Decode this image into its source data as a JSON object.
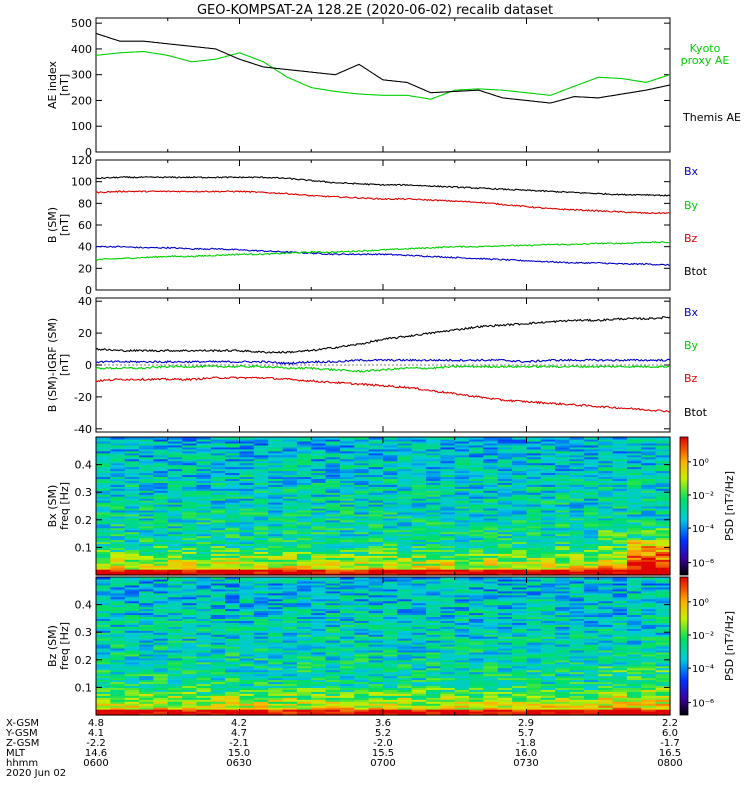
{
  "title": "GEO-KOMPSAT-2A 128.2E (2020-06-02) recalib dataset",
  "chart_data": [
    {
      "type": "line",
      "panel": "ae",
      "ylabel": "AE index",
      "yunit": "[nT]",
      "ylim": [
        0,
        520
      ],
      "yticks": [
        0,
        100,
        200,
        300,
        400,
        500
      ],
      "x": [
        "06:00",
        "06:05",
        "06:10",
        "06:15",
        "06:20",
        "06:25",
        "06:30",
        "06:35",
        "06:40",
        "06:45",
        "06:50",
        "06:55",
        "07:00",
        "07:05",
        "07:10",
        "07:15",
        "07:20",
        "07:25",
        "07:30",
        "07:35",
        "07:40",
        "07:45",
        "07:50",
        "07:55",
        "08:00"
      ],
      "series": [
        {
          "name": "Kyoto proxy AE",
          "color": "#00d000",
          "values": [
            375,
            385,
            390,
            375,
            350,
            360,
            385,
            350,
            290,
            250,
            235,
            225,
            220,
            220,
            205,
            240,
            245,
            240,
            230,
            220,
            255,
            290,
            285,
            270,
            300
          ]
        },
        {
          "name": "Themis AE",
          "color": "#000000",
          "values": [
            460,
            430,
            430,
            420,
            410,
            400,
            360,
            330,
            320,
            310,
            300,
            340,
            280,
            270,
            230,
            235,
            240,
            210,
            200,
            190,
            215,
            210,
            225,
            240,
            260
          ]
        }
      ]
    },
    {
      "type": "line",
      "panel": "b",
      "ylabel": "B (SM)",
      "yunit": "[nT]",
      "ylim": [
        0,
        120
      ],
      "yticks": [
        0,
        20,
        40,
        60,
        80,
        100,
        120
      ],
      "x": [
        "06:00",
        "06:05",
        "06:10",
        "06:15",
        "06:20",
        "06:25",
        "06:30",
        "06:35",
        "06:40",
        "06:45",
        "06:50",
        "06:55",
        "07:00",
        "07:05",
        "07:10",
        "07:15",
        "07:20",
        "07:25",
        "07:30",
        "07:35",
        "07:40",
        "07:45",
        "07:50",
        "07:55",
        "08:00"
      ],
      "series": [
        {
          "name": "Bx",
          "color": "#0000c8",
          "values": [
            40,
            40,
            39,
            39,
            38,
            38,
            37,
            36,
            35,
            34,
            33,
            33,
            33,
            32,
            31,
            30,
            29,
            28,
            27,
            26,
            25,
            25,
            24,
            24,
            23
          ]
        },
        {
          "name": "By",
          "color": "#00d000",
          "values": [
            28,
            29,
            30,
            31,
            31,
            32,
            33,
            33,
            34,
            35,
            35,
            36,
            37,
            38,
            39,
            40,
            40,
            41,
            41,
            42,
            42,
            43,
            43,
            44,
            44
          ]
        },
        {
          "name": "Bz",
          "color": "#e00000",
          "values": [
            90,
            91,
            91,
            91,
            91,
            91,
            91,
            90,
            89,
            87,
            86,
            85,
            84,
            84,
            83,
            82,
            81,
            79,
            77,
            75,
            74,
            73,
            72,
            71,
            71
          ]
        },
        {
          "name": "Btot",
          "color": "#000000",
          "values": [
            103,
            104,
            104,
            104,
            104,
            104,
            104,
            104,
            103,
            101,
            99,
            98,
            97,
            97,
            96,
            95,
            94,
            93,
            92,
            91,
            90,
            89,
            88,
            88,
            87
          ]
        }
      ]
    },
    {
      "type": "line",
      "panel": "db",
      "ylabel": "B (SM)-IGRF (SM)",
      "yunit": "[nT]",
      "ylim": [
        -42,
        42
      ],
      "yticks": [
        -40,
        -20,
        0,
        20,
        40
      ],
      "x": [
        "06:00",
        "06:05",
        "06:10",
        "06:15",
        "06:20",
        "06:25",
        "06:30",
        "06:35",
        "06:40",
        "06:45",
        "06:50",
        "06:55",
        "07:00",
        "07:05",
        "07:10",
        "07:15",
        "07:20",
        "07:25",
        "07:30",
        "07:35",
        "07:40",
        "07:45",
        "07:50",
        "07:55",
        "08:00"
      ],
      "series": [
        {
          "name": "Bx",
          "color": "#0000c8",
          "values": [
            2,
            2,
            2,
            2,
            2,
            2,
            2,
            2,
            1,
            2,
            2,
            3,
            3,
            3,
            3,
            3,
            3,
            3,
            2,
            3,
            3,
            3,
            3,
            3,
            3
          ]
        },
        {
          "name": "By",
          "color": "#00d000",
          "values": [
            -2,
            -2,
            -2,
            -1,
            -1,
            -1,
            -1,
            -1,
            -2,
            -2,
            -3,
            -4,
            -3,
            -2,
            -2,
            -1,
            -1,
            -1,
            -1,
            -1,
            -1,
            -1,
            -1,
            -1,
            -1
          ]
        },
        {
          "name": "Bz",
          "color": "#e00000",
          "values": [
            -10,
            -9,
            -9,
            -9,
            -9,
            -8,
            -8,
            -8,
            -9,
            -10,
            -11,
            -12,
            -13,
            -14,
            -16,
            -18,
            -20,
            -22,
            -23,
            -24,
            -25,
            -26,
            -27,
            -28,
            -29
          ]
        },
        {
          "name": "Btot",
          "color": "#000000",
          "values": [
            10,
            9,
            9,
            9,
            9,
            9,
            9,
            8,
            8,
            9,
            11,
            13,
            16,
            18,
            20,
            22,
            24,
            25,
            26,
            27,
            28,
            28,
            29,
            29,
            30
          ]
        }
      ]
    },
    {
      "type": "heatmap",
      "panel": "bx_psd",
      "ylabel": "Bx (SM)",
      "yunit": "freq [Hz]",
      "ylim": [
        0,
        0.5
      ],
      "yticks": [
        0.1,
        0.2,
        0.3,
        0.4
      ],
      "colorbar_label": "PSD [nT²/Hz]",
      "colorbar_ticks": [
        "10⁰",
        "10⁻²",
        "10⁻⁴",
        "10⁻⁶"
      ]
    },
    {
      "type": "heatmap",
      "panel": "bz_psd",
      "ylabel": "Bz (SM)",
      "yunit": "freq [Hz]",
      "ylim": [
        0,
        0.5
      ],
      "yticks": [
        0.1,
        0.2,
        0.3,
        0.4
      ],
      "colorbar_label": "PSD [nT²/Hz]",
      "colorbar_ticks": [
        "10⁰",
        "10⁻²",
        "10⁻⁴",
        "10⁻⁶"
      ]
    }
  ],
  "orbit_table": {
    "rows": [
      {
        "label": "X-GSM",
        "values": [
          "4.8",
          "4.2",
          "3.6",
          "2.9",
          "2.2"
        ]
      },
      {
        "label": "Y-GSM",
        "values": [
          "4.1",
          "4.7",
          "5.2",
          "5.7",
          "6.0"
        ]
      },
      {
        "label": "Z-GSM",
        "values": [
          "-2.2",
          "-2.1",
          "-2.0",
          "-1.8",
          "-1.7"
        ]
      },
      {
        "label": "MLT",
        "values": [
          "14.6",
          "15.0",
          "15.5",
          "16.0",
          "16.5"
        ]
      },
      {
        "label": "hhmm",
        "values": [
          "0600",
          "0630",
          "0700",
          "0730",
          "0800"
        ]
      }
    ],
    "date": "2020 Jun 02"
  },
  "legends": {
    "ae": [
      {
        "text": "Kyoto",
        "color": "#00d000"
      },
      {
        "text": "proxy AE",
        "color": "#00d000"
      },
      {
        "text": "Themis AE",
        "color": "#000000"
      }
    ]
  }
}
